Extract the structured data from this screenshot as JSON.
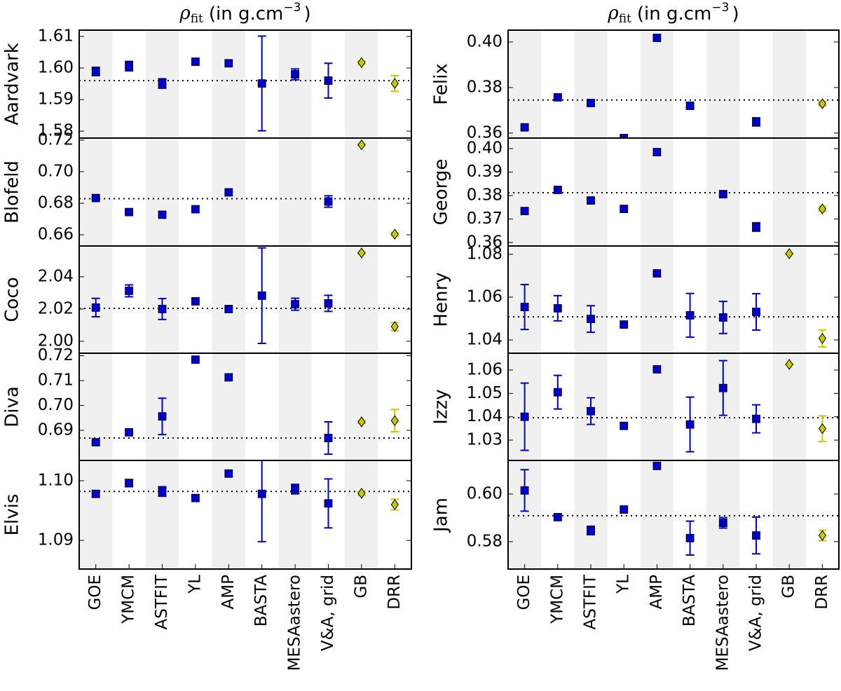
{
  "chart_data": [
    {
      "type": "errorbar",
      "title": {
        "symbol": "ρ",
        "subscript": "fit",
        "text": "(in g.cm",
        "superscript": "−3",
        "end": ")"
      },
      "ylabel": "Aardvark",
      "values": [
        1.5989,
        1.6006,
        1.5951,
        1.602,
        1.6015,
        1.5951,
        1.598,
        1.596,
        1.6017,
        1.5951
      ],
      "errors": [
        0.0013,
        0.0015,
        0.0015,
        0,
        0,
        0.015,
        0.0017,
        0.0055,
        0.0005,
        0.0025
      ],
      "colors": [
        "#0000cc",
        "#0000cc",
        "#0000cc",
        "#0000cc",
        "#0000cc",
        "#0000cc",
        "#0000cc",
        "#0000cc",
        "#c8c800",
        "#c8c800"
      ],
      "reference": 1.596,
      "ylim": [
        1.5778,
        1.612
      ],
      "yticks": [
        {
          "value": 1.58,
          "label": "1.58"
        },
        {
          "value": 1.59,
          "label": "1.59"
        },
        {
          "value": 1.6,
          "label": "1.60"
        },
        {
          "value": 1.61,
          "label": "1.61"
        }
      ]
    },
    {
      "type": "errorbar",
      "ylabel": "Blofeld",
      "values": [
        0.6833,
        0.6744,
        0.6727,
        0.6762,
        0.6869,
        null,
        null,
        0.6811,
        0.717,
        0.6604
      ],
      "errors": [
        0.0008,
        0.0008,
        0.0008,
        0,
        0,
        null,
        null,
        0.0036,
        0.0005,
        0.001
      ],
      "colors": [
        "#0000cc",
        "#0000cc",
        "#0000cc",
        "#0000cc",
        "#0000cc",
        "#0000cc",
        "#0000cc",
        "#0000cc",
        "#c8c800",
        "#c8c800"
      ],
      "reference": 0.6829,
      "ylim": [
        0.6529,
        0.7213
      ],
      "yticks": [
        {
          "value": 0.66,
          "label": "0.66"
        },
        {
          "value": 0.68,
          "label": "0.68"
        },
        {
          "value": 0.7,
          "label": "0.70"
        },
        {
          "value": 0.72,
          "label": "0.72"
        }
      ]
    },
    {
      "type": "errorbar",
      "ylabel": "Coco",
      "values": [
        2.0209,
        2.0313,
        2.02,
        2.0248,
        2.02,
        2.0283,
        2.023,
        2.0235,
        2.0548,
        2.0091
      ],
      "errors": [
        0.0057,
        0.0037,
        0.0065,
        0,
        0,
        0.0296,
        0.0037,
        0.005,
        0.0005,
        0.0025
      ],
      "colors": [
        "#0000cc",
        "#0000cc",
        "#0000cc",
        "#0000cc",
        "#0000cc",
        "#0000cc",
        "#0000cc",
        "#0000cc",
        "#c8c800",
        "#c8c800"
      ],
      "reference": 2.0204,
      "ylim": [
        1.9926,
        2.0591
      ],
      "yticks": [
        {
          "value": 2.0,
          "label": "2.00"
        },
        {
          "value": 2.02,
          "label": "2.02"
        },
        {
          "value": 2.04,
          "label": "2.04"
        }
      ]
    },
    {
      "type": "errorbar",
      "ylabel": "Diva",
      "values": [
        0.6852,
        0.6892,
        0.6956,
        0.7184,
        0.7113,
        null,
        null,
        0.6869,
        0.6934,
        0.6939
      ],
      "errors": [
        0.0006,
        0.0006,
        0.0073,
        0,
        0,
        null,
        null,
        0.0065,
        0.0005,
        0.0045
      ],
      "colors": [
        "#0000cc",
        "#0000cc",
        "#0000cc",
        "#0000cc",
        "#0000cc",
        "#0000cc",
        "#0000cc",
        "#0000cc",
        "#c8c800",
        "#c8c800"
      ],
      "reference": 0.6869,
      "ylim": [
        0.6779,
        0.721
      ],
      "yticks": [
        {
          "value": 0.69,
          "label": "0.69"
        },
        {
          "value": 0.7,
          "label": "0.70"
        },
        {
          "value": 0.71,
          "label": "0.71"
        },
        {
          "value": 0.72,
          "label": "0.72"
        }
      ]
    },
    {
      "type": "errorbar",
      "ylabel": "Elvis",
      "categories": [
        "GOE",
        "YMCM",
        "ASTFIT",
        "YL",
        "AMP",
        "BASTA",
        "MESAastero",
        "V&A, grid",
        "GB",
        "DRR"
      ],
      "values": [
        1.0978,
        1.0996,
        1.0982,
        1.0971,
        1.1012,
        1.0978,
        1.0986,
        1.0962,
        1.0979,
        1.096
      ],
      "errors": [
        0.0005,
        0.0006,
        0.0008,
        0,
        0,
        0.008,
        0.0008,
        0.0041,
        0.0003,
        0.0009
      ],
      "colors": [
        "#0000cc",
        "#0000cc",
        "#0000cc",
        "#0000cc",
        "#0000cc",
        "#0000cc",
        "#0000cc",
        "#0000cc",
        "#c8c800",
        "#c8c800"
      ],
      "reference": 1.0982,
      "ylim": [
        1.0852,
        1.1034
      ],
      "yticks": [
        {
          "value": 1.09,
          "label": "1.09"
        },
        {
          "value": 1.1,
          "label": "1.10"
        }
      ]
    },
    {
      "type": "errorbar",
      "title": {
        "symbol": "ρ",
        "subscript": "fit",
        "text": "(in g.cm",
        "superscript": "−3",
        "end": ")"
      },
      "ylabel": "Felix",
      "values": [
        0.3625,
        0.3757,
        0.3732,
        0.3578,
        0.4018,
        0.372,
        null,
        0.3649,
        null,
        0.3729
      ],
      "errors": [
        0.0008,
        0.0005,
        0.0005,
        0,
        0,
        0.0015,
        null,
        0.0018,
        null,
        0.0009
      ],
      "colors": [
        "#0000cc",
        "#0000cc",
        "#0000cc",
        "#0000cc",
        "#0000cc",
        "#0000cc",
        "#0000cc",
        "#0000cc",
        "#c8c800",
        "#c8c800"
      ],
      "reference": 0.3745,
      "ylim": [
        0.3578,
        0.4052
      ],
      "yticks": [
        {
          "value": 0.36,
          "label": "0.36"
        },
        {
          "value": 0.38,
          "label": "0.38"
        },
        {
          "value": 0.4,
          "label": "0.40"
        }
      ]
    },
    {
      "type": "errorbar",
      "ylabel": "George",
      "values": [
        0.3734,
        0.3824,
        0.3779,
        0.3743,
        0.3985,
        null,
        0.3806,
        0.3666,
        null,
        0.3743
      ],
      "errors": [
        0.0008,
        0.0005,
        0.0009,
        0,
        0,
        null,
        0.0004,
        0.0018,
        null,
        0.001
      ],
      "colors": [
        "#0000cc",
        "#0000cc",
        "#0000cc",
        "#0000cc",
        "#0000cc",
        "#0000cc",
        "#0000cc",
        "#0000cc",
        "#c8c800",
        "#c8c800"
      ],
      "reference": 0.3812,
      "ylim": [
        0.3585,
        0.4045
      ],
      "yticks": [
        {
          "value": 0.36,
          "label": "0.36"
        },
        {
          "value": 0.37,
          "label": "0.37"
        },
        {
          "value": 0.38,
          "label": "0.38"
        },
        {
          "value": 0.39,
          "label": "0.39"
        },
        {
          "value": 0.4,
          "label": "0.40"
        }
      ]
    },
    {
      "type": "errorbar",
      "ylabel": "Henry",
      "values": [
        1.0554,
        1.0548,
        1.0498,
        1.0472,
        1.0711,
        1.0515,
        1.0505,
        1.0531,
        1.0803,
        1.0407
      ],
      "errors": [
        0.0105,
        0.0059,
        0.0062,
        0,
        0,
        0.0102,
        0.0075,
        0.0085,
        0.0003,
        0.004
      ],
      "colors": [
        "#0000cc",
        "#0000cc",
        "#0000cc",
        "#0000cc",
        "#0000cc",
        "#0000cc",
        "#0000cc",
        "#0000cc",
        "#c8c800",
        "#c8c800"
      ],
      "reference": 1.0508,
      "ylim": [
        1.0338,
        1.0839
      ],
      "yticks": [
        {
          "value": 1.04,
          "label": "1.04"
        },
        {
          "value": 1.06,
          "label": "1.06"
        },
        {
          "value": 1.08,
          "label": "1.08"
        }
      ]
    },
    {
      "type": "errorbar",
      "ylabel": "Izzy",
      "values": [
        1.04,
        1.0505,
        1.0424,
        1.0361,
        1.0603,
        1.0367,
        1.0523,
        1.0391,
        1.0624,
        1.0349
      ],
      "errors": [
        0.0144,
        0.0072,
        0.0057,
        0,
        0,
        0.0117,
        0.0117,
        0.006,
        0.0003,
        0.0055
      ],
      "colors": [
        "#0000cc",
        "#0000cc",
        "#0000cc",
        "#0000cc",
        "#0000cc",
        "#0000cc",
        "#0000cc",
        "#0000cc",
        "#c8c800",
        "#c8c800"
      ],
      "reference": 1.0396,
      "ylim": [
        1.0213,
        1.0672
      ],
      "yticks": [
        {
          "value": 1.03,
          "label": "1.03"
        },
        {
          "value": 1.04,
          "label": "1.04"
        },
        {
          "value": 1.05,
          "label": "1.05"
        },
        {
          "value": 1.06,
          "label": "1.06"
        }
      ]
    },
    {
      "type": "errorbar",
      "ylabel": "Jam",
      "categories": [
        "GOE",
        "YMCM",
        "ASTFIT",
        "YL",
        "AMP",
        "BASTA",
        "MESAastero",
        "V&A, grid",
        "GB",
        "DRR"
      ],
      "values": [
        0.6015,
        0.5903,
        0.5847,
        0.5935,
        0.6118,
        0.5815,
        0.5879,
        0.5826,
        null,
        0.5826
      ],
      "errors": [
        0.0087,
        0.0012,
        0.0018,
        0,
        0,
        0.0071,
        0.0022,
        0.0077,
        null,
        0.0022
      ],
      "colors": [
        "#0000cc",
        "#0000cc",
        "#0000cc",
        "#0000cc",
        "#0000cc",
        "#0000cc",
        "#0000cc",
        "#0000cc",
        "#c8c800",
        "#c8c800"
      ],
      "reference": 0.5909,
      "ylim": [
        0.5685,
        0.6141
      ],
      "yticks": [
        {
          "value": 0.58,
          "label": "0.58"
        },
        {
          "value": 0.6,
          "label": "0.60"
        }
      ]
    }
  ]
}
